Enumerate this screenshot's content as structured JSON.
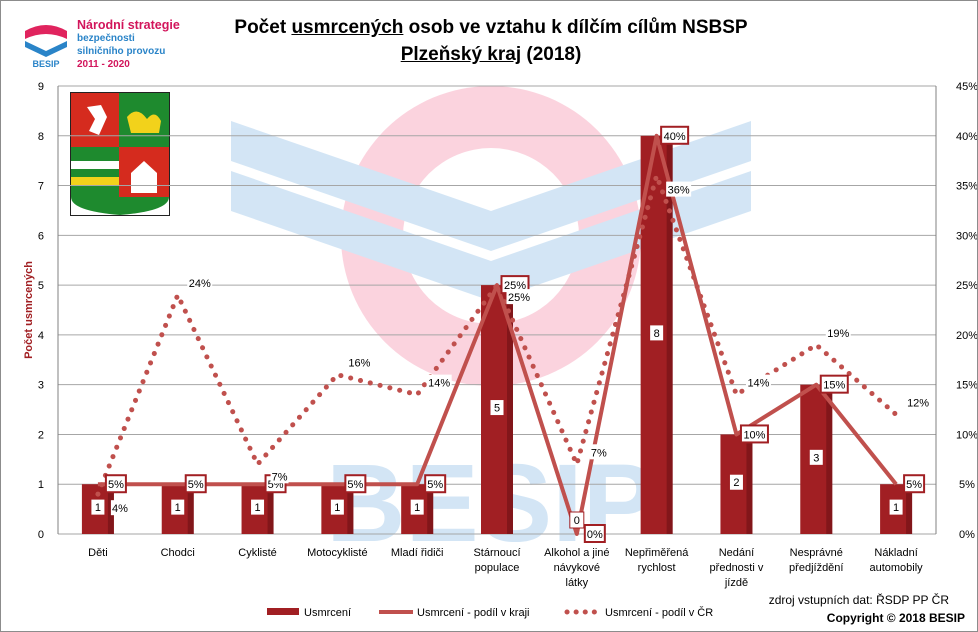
{
  "logo": {
    "line1": "Národní strategie",
    "line2": "bezpečnosti",
    "line3": "silničního provozu",
    "line4": "2011 - 2020",
    "badge": "BESIP"
  },
  "header": {
    "title_before": "Počet ",
    "title_underlined": "usmrcených",
    "title_after": " osob ve vztahu k dílčím cílům NSBSP",
    "subtitle_underlined": "Plzeňský kraj",
    "subtitle_after": " (2018)"
  },
  "footer": {
    "source": "zdroj vstupních dat: ŘSDP PP ČR",
    "copyright": "Copyright © 2018  BESIP"
  },
  "colors": {
    "bar": "#a11f23",
    "bar_dark": "#6e1014",
    "line": "#c0504d",
    "dots": "#c0504d",
    "grid": "#a6a6a6"
  },
  "chart_data": {
    "type": "bar",
    "categories": [
      [
        "Děti"
      ],
      [
        "Chodci"
      ],
      [
        "Cyklisté"
      ],
      [
        "Motocyklisté"
      ],
      [
        "Mladí řidiči"
      ],
      [
        "Stárnoucí",
        "populace"
      ],
      [
        "Alkohol a jiné",
        "návykové",
        "látky"
      ],
      [
        "Nepřiměřená",
        "rychlost"
      ],
      [
        "Nedání",
        "přednosti v",
        "jízdě"
      ],
      [
        "Nesprávné",
        "předjíždění"
      ],
      [
        "Nákladní",
        "automobily"
      ]
    ],
    "ylabel": "Počet usmrcených",
    "ylim": [
      0,
      9
    ],
    "y_ticks": [
      "0",
      "1",
      "2",
      "3",
      "4",
      "5",
      "6",
      "7",
      "8",
      "9"
    ],
    "y2lim": [
      0,
      45
    ],
    "y2_ticks": [
      "0%",
      "5%",
      "10%",
      "15%",
      "20%",
      "25%",
      "30%",
      "35%",
      "40%",
      "45%"
    ],
    "grid": true,
    "legend_position": "bottom",
    "series": [
      {
        "name": "Usmrcení",
        "kind": "bar",
        "axis": "left",
        "values": [
          1,
          1,
          1,
          1,
          1,
          5,
          0,
          8,
          2,
          3,
          1
        ],
        "labels": [
          "1",
          "1",
          "1",
          "1",
          "1",
          "5",
          "0",
          "8",
          "2",
          "3",
          "1"
        ]
      },
      {
        "name": "Usmrcení - podíl v kraji",
        "kind": "line",
        "axis": "right",
        "values": [
          5,
          5,
          5,
          5,
          5,
          25,
          0,
          40,
          10,
          15,
          5
        ],
        "labels": [
          "5%",
          "5%",
          "5%",
          "5%",
          "5%",
          "25%",
          "0%",
          "40%",
          "10%",
          "15%",
          "5%"
        ]
      },
      {
        "name": "Usmrcení - podíl v ČR",
        "kind": "dotted-line",
        "axis": "right",
        "values": [
          4,
          24,
          7,
          16,
          14,
          25,
          7,
          36,
          14,
          19,
          12
        ],
        "labels": [
          "4%",
          "24%",
          "7%",
          "16%",
          "14%",
          "25%",
          "7%",
          "36%",
          "14%",
          "19%",
          "12%"
        ]
      }
    ]
  }
}
